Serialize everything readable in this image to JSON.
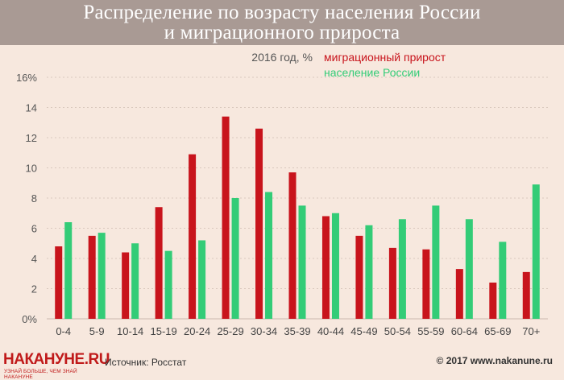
{
  "title": "Распределение по возрасту населения России и миграционного прироста",
  "subtitle": "2016 год, %",
  "source": "Источник: Росстат",
  "copyright": "© 2017 www.nakanune.ru",
  "logo": {
    "name": "НАКАНУНЕ.RU",
    "tagline": "УЗНАЙ БОЛЬШЕ, ЧЕМ ЗНАЙ НАКАНУНЕ"
  },
  "colors": {
    "migration": "#c8141c",
    "population": "#33cc77",
    "background": "#f7e8de",
    "title_bar": "#a99a94"
  },
  "chart_data": {
    "type": "bar",
    "categories": [
      "0-4",
      "5-9",
      "10-14",
      "15-19",
      "20-24",
      "25-29",
      "30-34",
      "35-39",
      "40-44",
      "45-49",
      "50-54",
      "55-59",
      "60-64",
      "65-69",
      "70+"
    ],
    "series": [
      {
        "name": "миграционный прирост",
        "values": [
          4.8,
          5.5,
          4.4,
          7.4,
          10.9,
          13.4,
          12.6,
          9.7,
          6.8,
          5.5,
          4.7,
          4.6,
          3.3,
          2.4,
          3.1
        ]
      },
      {
        "name": "население России",
        "values": [
          6.4,
          5.7,
          5.0,
          4.5,
          5.2,
          8.0,
          8.4,
          7.5,
          7.0,
          6.2,
          6.6,
          7.5,
          6.6,
          5.1,
          8.9
        ]
      }
    ],
    "y_ticks": [
      "0%",
      "2",
      "4",
      "6",
      "8",
      "10",
      "12",
      "14",
      "16%"
    ],
    "ylim": [
      0,
      16
    ],
    "legend_position": "top-center",
    "grid": "dotted horizontal"
  }
}
